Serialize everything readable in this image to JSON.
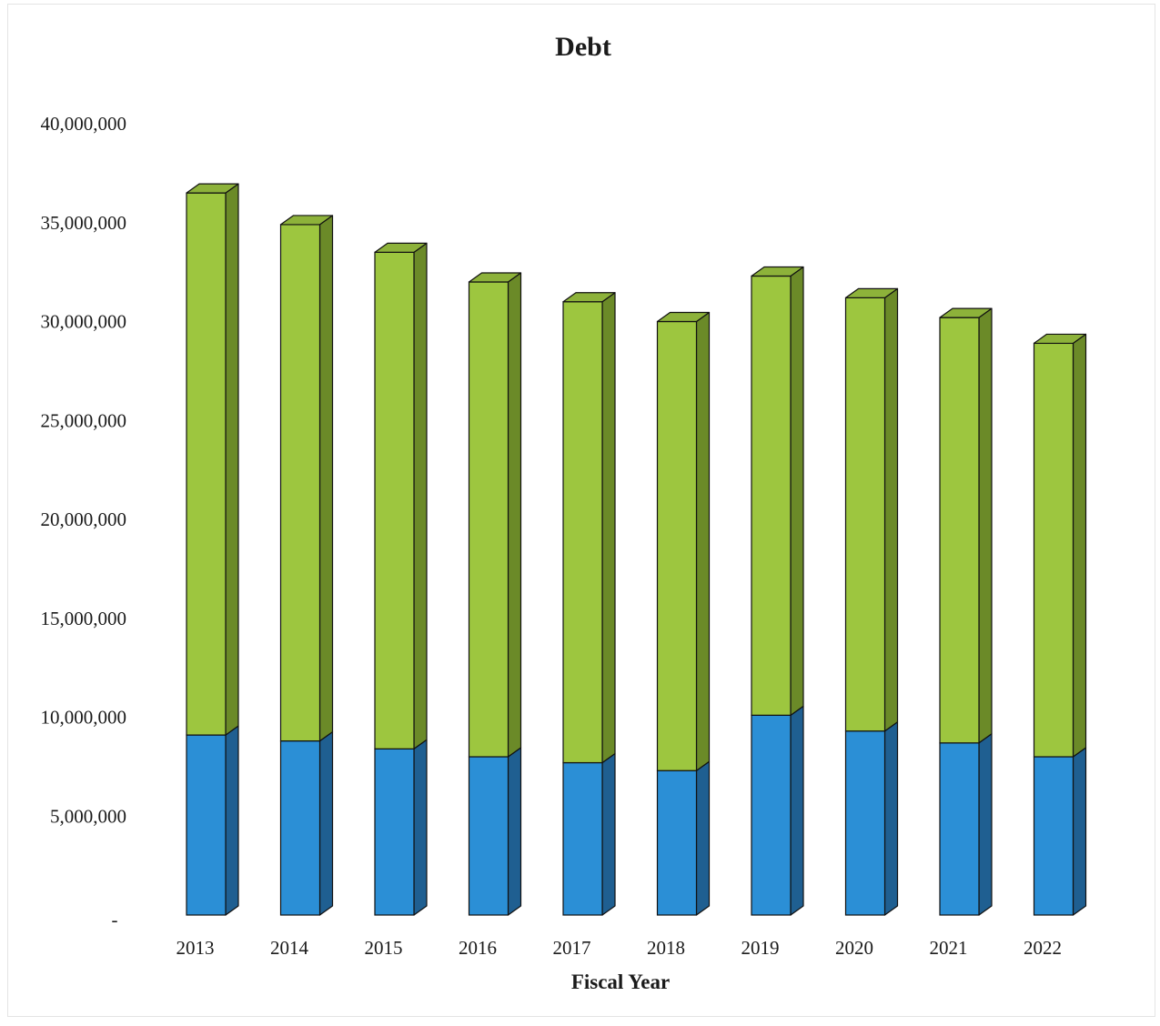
{
  "chart_data": {
    "type": "bar",
    "stacked": true,
    "three_d": true,
    "title": "Debt",
    "xlabel": "Fiscal Year",
    "ylabel": "",
    "categories": [
      "2013",
      "2014",
      "2015",
      "2016",
      "2017",
      "2018",
      "2019",
      "2020",
      "2021",
      "2022"
    ],
    "series": [
      {
        "color": "#2b8fd6",
        "side_color": "#1f5f91",
        "values": [
          9100000,
          8800000,
          8400000,
          8000000,
          7700000,
          7300000,
          10100000,
          9300000,
          8700000,
          8000000
        ]
      },
      {
        "color": "#9dc63f",
        "side_color": "#6b8a28",
        "values": [
          27400000,
          26100000,
          25100000,
          24000000,
          23300000,
          22700000,
          22200000,
          21900000,
          21500000,
          20900000
        ]
      }
    ],
    "ylim": [
      0,
      40000000
    ],
    "yticks": [
      0,
      5000000,
      10000000,
      15000000,
      20000000,
      25000000,
      30000000,
      35000000,
      40000000
    ],
    "ytick_labels": [
      "-",
      "5,000,000",
      "10,000,000",
      "15,000,000",
      "20,000,000",
      "25,000,000",
      "30,000,000",
      "35,000,000",
      "40,000,000"
    ],
    "grid": false,
    "legend": "none"
  }
}
